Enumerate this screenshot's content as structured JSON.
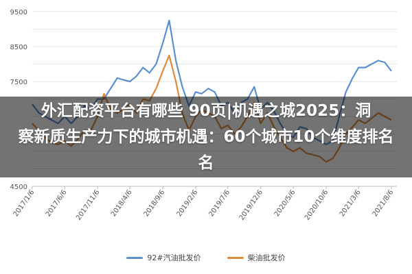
{
  "chart_data": {
    "type": "line",
    "title": "",
    "xlabel": "",
    "ylabel": "",
    "ylim": [
      4500,
      9500
    ],
    "yticks": [
      9500,
      8500,
      7500,
      4500
    ],
    "x_tick_labels": [
      "2017/1/6",
      "2017/6/6",
      "2017/11/6",
      "2018/4/6",
      "2018/9/6",
      "2019/2/6",
      "2019/7/6",
      "2019/12/6",
      "2020/5/6",
      "2020/10/6",
      "2021/3/6",
      "2021/8/6"
    ],
    "x_range": [
      "2017/1/6",
      "2021/8/6"
    ],
    "grid": true,
    "legend_position": "bottom",
    "series": [
      {
        "name": "92#汽油批发价",
        "color": "#5b8fd0",
        "points": [
          [
            "2017/1/6",
            6850
          ],
          [
            "2017/2/6",
            6600
          ],
          [
            "2017/3/6",
            6500
          ],
          [
            "2017/4/6",
            6400
          ],
          [
            "2017/5/6",
            6300
          ],
          [
            "2017/6/6",
            6500
          ],
          [
            "2017/7/6",
            6300
          ],
          [
            "2017/8/6",
            6500
          ],
          [
            "2017/9/6",
            6800
          ],
          [
            "2017/10/6",
            6700
          ],
          [
            "2017/11/6",
            7000
          ],
          [
            "2017/12/6",
            7000
          ],
          [
            "2018/1/6",
            7300
          ],
          [
            "2018/2/6",
            7600
          ],
          [
            "2018/3/6",
            7550
          ],
          [
            "2018/4/6",
            7500
          ],
          [
            "2018/5/6",
            7650
          ],
          [
            "2018/6/6",
            7900
          ],
          [
            "2018/7/6",
            7750
          ],
          [
            "2018/8/6",
            8000
          ],
          [
            "2018/9/6",
            8600
          ],
          [
            "2018/10/6",
            9250
          ],
          [
            "2018/11/6",
            8100
          ],
          [
            "2018/12/6",
            7350
          ],
          [
            "2019/1/6",
            6800
          ],
          [
            "2019/2/6",
            7200
          ],
          [
            "2019/3/6",
            7150
          ],
          [
            "2019/4/6",
            7300
          ],
          [
            "2019/5/6",
            7200
          ],
          [
            "2019/6/6",
            6800
          ],
          [
            "2019/7/6",
            6900
          ],
          [
            "2019/8/6",
            6600
          ],
          [
            "2019/9/6",
            6900
          ],
          [
            "2019/10/6",
            7000
          ],
          [
            "2019/11/6",
            7350
          ],
          [
            "2019/12/6",
            6700
          ],
          [
            "2020/1/6",
            6900
          ],
          [
            "2020/2/6",
            6650
          ],
          [
            "2020/3/6",
            6300
          ],
          [
            "2020/4/6",
            6000
          ],
          [
            "2020/5/6",
            5900
          ],
          [
            "2020/6/6",
            6200
          ],
          [
            "2020/7/6",
            6150
          ],
          [
            "2020/8/6",
            5900
          ],
          [
            "2020/9/6",
            5800
          ],
          [
            "2020/10/6",
            5700
          ],
          [
            "2020/11/6",
            5800
          ],
          [
            "2020/12/6",
            6500
          ],
          [
            "2021/1/6",
            7200
          ],
          [
            "2021/2/6",
            7600
          ],
          [
            "2021/3/6",
            7900
          ],
          [
            "2021/4/6",
            7900
          ],
          [
            "2021/5/6",
            8000
          ],
          [
            "2021/6/6",
            8100
          ],
          [
            "2021/7/6",
            8050
          ],
          [
            "2021/8/6",
            7800
          ]
        ]
      },
      {
        "name": "柴油批发价",
        "color": "#e08a3c",
        "points": [
          [
            "2017/1/6",
            6300
          ],
          [
            "2017/2/6",
            6100
          ],
          [
            "2017/3/6",
            5900
          ],
          [
            "2017/4/6",
            5750
          ],
          [
            "2017/5/6",
            5700
          ],
          [
            "2017/6/6",
            5800
          ],
          [
            "2017/7/6",
            5650
          ],
          [
            "2017/8/6",
            5850
          ],
          [
            "2017/9/6",
            6100
          ],
          [
            "2017/10/6",
            6100
          ],
          [
            "2017/11/6",
            6500
          ],
          [
            "2017/12/6",
            7150
          ],
          [
            "2018/1/6",
            6700
          ],
          [
            "2018/2/6",
            6600
          ],
          [
            "2018/3/6",
            6700
          ],
          [
            "2018/4/6",
            6850
          ],
          [
            "2018/5/6",
            6600
          ],
          [
            "2018/6/6",
            7000
          ],
          [
            "2018/7/6",
            6950
          ],
          [
            "2018/8/6",
            7300
          ],
          [
            "2018/9/6",
            7800
          ],
          [
            "2018/10/6",
            8250
          ],
          [
            "2018/11/6",
            7500
          ],
          [
            "2018/12/6",
            6600
          ],
          [
            "2019/1/6",
            6100
          ],
          [
            "2019/2/6",
            6500
          ],
          [
            "2019/3/6",
            6700
          ],
          [
            "2019/4/6",
            6600
          ],
          [
            "2019/5/6",
            6500
          ],
          [
            "2019/6/6",
            6150
          ],
          [
            "2019/7/6",
            6250
          ],
          [
            "2019/8/6",
            6000
          ],
          [
            "2019/9/6",
            6200
          ],
          [
            "2019/10/6",
            6500
          ],
          [
            "2019/11/6",
            6900
          ],
          [
            "2019/12/6",
            6300
          ],
          [
            "2020/1/6",
            6600
          ],
          [
            "2020/2/6",
            6200
          ],
          [
            "2020/3/6",
            5900
          ],
          [
            "2020/4/6",
            5600
          ],
          [
            "2020/5/6",
            5500
          ],
          [
            "2020/6/6",
            5600
          ],
          [
            "2020/7/6",
            5450
          ],
          [
            "2020/8/6",
            5400
          ],
          [
            "2020/9/6",
            5350
          ],
          [
            "2020/10/6",
            5200
          ],
          [
            "2020/11/6",
            5300
          ],
          [
            "2020/12/6",
            5600
          ],
          [
            "2021/1/6",
            6000
          ],
          [
            "2021/2/6",
            6200
          ],
          [
            "2021/3/6",
            6400
          ],
          [
            "2021/4/6",
            6300
          ],
          [
            "2021/5/6",
            6450
          ],
          [
            "2021/6/6",
            6600
          ],
          [
            "2021/7/6",
            6500
          ],
          [
            "2021/8/6",
            6400
          ]
        ]
      }
    ]
  },
  "overlay": {
    "line1": "外汇配资平台有哪些 90页|机遇之城2025：洞",
    "line2": "察新质生产力下的城市机遇：60个城市10个维度排名",
    "line3": "名"
  }
}
